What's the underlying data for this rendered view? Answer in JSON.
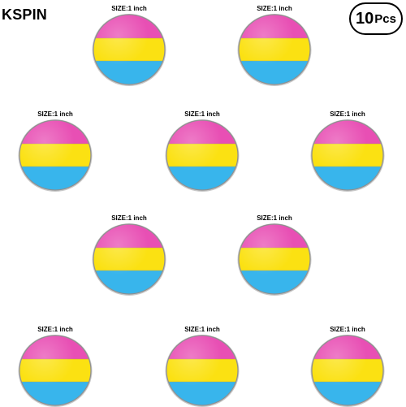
{
  "brand": "KSPIN",
  "quantity": {
    "number": "10",
    "unit": "Pcs"
  },
  "size_label": "SIZE:1 inch",
  "flag_colors": {
    "top": "#e84fb4",
    "middle": "#fbe112",
    "bottom": "#38b5ec"
  },
  "pins": [
    {
      "size_label": "SIZE:1 inch"
    },
    {
      "size_label": "SIZE:1 inch"
    },
    {
      "size_label": "SIZE:1 inch"
    },
    {
      "size_label": "SIZE:1 inch"
    },
    {
      "size_label": "SIZE:1 inch"
    },
    {
      "size_label": "SIZE:1 inch"
    },
    {
      "size_label": "SIZE:1 inch"
    },
    {
      "size_label": "SIZE:1 inch"
    },
    {
      "size_label": "SIZE:1 inch"
    },
    {
      "size_label": "SIZE:1 inch"
    }
  ]
}
